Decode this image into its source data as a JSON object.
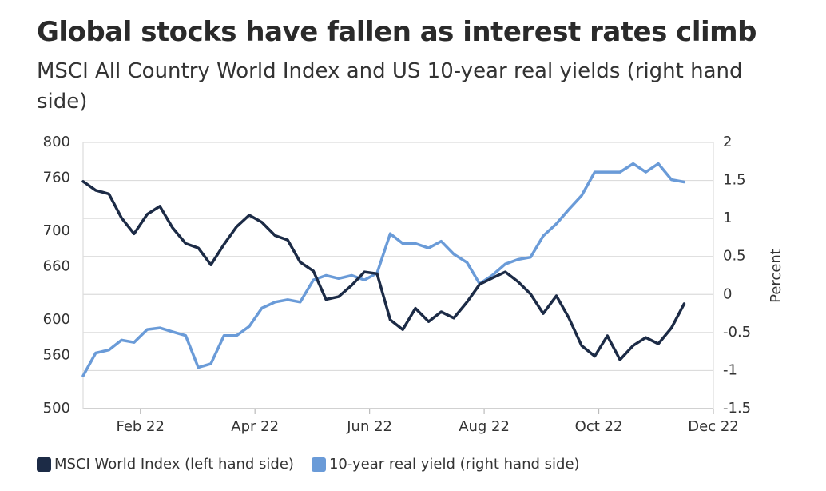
{
  "chart_data": {
    "type": "line",
    "title": "Global stocks have fallen as interest rates climb",
    "subtitle": "MSCI All Country World Index and US 10-year real yields (right hand side)",
    "y2_label": "Percent",
    "x": [
      0,
      0.22,
      0.45,
      0.67,
      0.89,
      1.12,
      1.34,
      1.56,
      1.79,
      2.01,
      2.23,
      2.46,
      2.68,
      2.9,
      3.12,
      3.35,
      3.57,
      3.79,
      4.02,
      4.24,
      4.46,
      4.69,
      4.91,
      5.13,
      5.36,
      5.58,
      5.8,
      6.03,
      6.25,
      6.47,
      6.7,
      6.92,
      7.14,
      7.37,
      7.59,
      7.81,
      8.03,
      8.26,
      8.48,
      8.7,
      8.93,
      9.15,
      9.37,
      9.6,
      9.82,
      10.04,
      10.27,
      10.49
    ],
    "xlim": [
      0,
      11
    ],
    "xticks": [
      {
        "value": 1,
        "label": "Feb 22"
      },
      {
        "value": 3,
        "label": "Apr 22"
      },
      {
        "value": 5,
        "label": "Jun 22"
      },
      {
        "value": 7,
        "label": "Aug 22"
      },
      {
        "value": 9,
        "label": "Oct 22"
      },
      {
        "value": 11,
        "label": "Dec 22"
      }
    ],
    "ylim": [
      500,
      800
    ],
    "yticks": [
      500,
      560,
      600,
      660,
      700,
      760,
      800
    ],
    "y2lim": [
      -1.5,
      2
    ],
    "y2ticks": [
      -1.5,
      -1,
      -0.5,
      0,
      0.5,
      1,
      1.5,
      2
    ],
    "grid": true,
    "series": [
      {
        "name": "MSCI World Index (left hand side)",
        "color": "#1c2b46",
        "axis": "y",
        "values": [
          756,
          746,
          742,
          715,
          697,
          719,
          728,
          704,
          686,
          681,
          662,
          685,
          705,
          718,
          710,
          695,
          690,
          665,
          655,
          623,
          626,
          639,
          654,
          652,
          600,
          589,
          613,
          598,
          609,
          602,
          620,
          640,
          647,
          654,
          643,
          629,
          607,
          627,
          602,
          571,
          559,
          582,
          555,
          571,
          580,
          573,
          591,
          618
        ]
      },
      {
        "name": "10-year real yield (right hand side)",
        "color": "#6a9bd8",
        "axis": "y2",
        "values": [
          -1.07,
          -0.77,
          -0.73,
          -0.6,
          -0.63,
          -0.46,
          -0.44,
          -0.49,
          -0.54,
          -0.96,
          -0.91,
          -0.54,
          -0.54,
          -0.42,
          -0.18,
          -0.1,
          -0.07,
          -0.1,
          0.19,
          0.25,
          0.21,
          0.25,
          0.19,
          0.28,
          0.8,
          0.67,
          0.67,
          0.61,
          0.7,
          0.53,
          0.42,
          0.14,
          0.25,
          0.4,
          0.46,
          0.49,
          0.77,
          0.93,
          1.12,
          1.3,
          1.61,
          1.61,
          1.61,
          1.72,
          1.61,
          1.72,
          1.51,
          1.48
        ]
      }
    ]
  }
}
